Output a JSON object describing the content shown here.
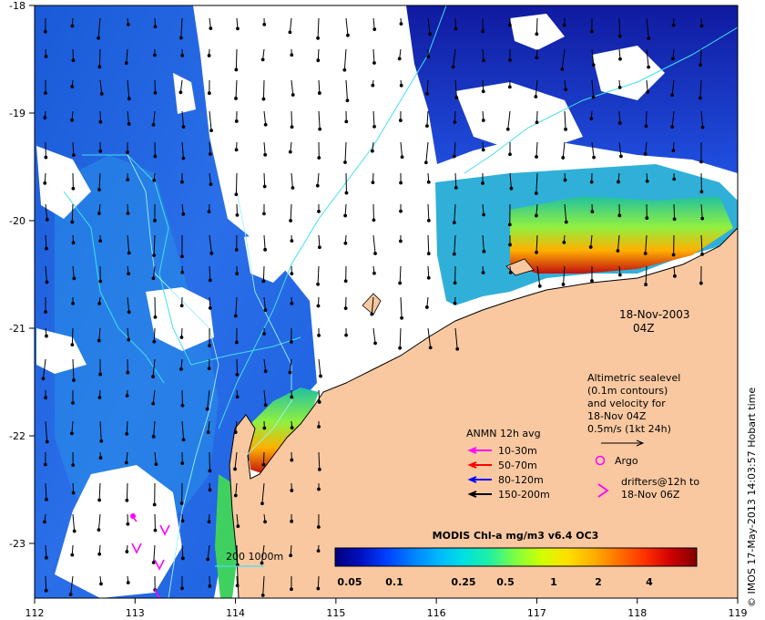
{
  "map": {
    "lon_ticks": [
      "112",
      "113",
      "114",
      "115",
      "116",
      "117",
      "118",
      "119"
    ],
    "lat_ticks": [
      "-18",
      "-19",
      "-20",
      "-21",
      "-22",
      "-23"
    ],
    "date_line1": "18-Nov-2003",
    "date_line2": "04Z",
    "credit": "© IMOS 17-May-2013 14:03:57 Hobart time",
    "altimetry_legend": [
      "Altimetric sealevel",
      "(0.1m contours)",
      "and velocity for",
      "18-Nov 04Z",
      "0.5m/s (1kt 24h)"
    ],
    "anmn": {
      "title": "ANMN 12h avg",
      "entries": [
        {
          "label": "10-30m",
          "color": "#ff00ff"
        },
        {
          "label": "50-70m",
          "color": "#ff0000"
        },
        {
          "label": "80-120m",
          "color": "#0000ff"
        },
        {
          "label": "150-200m",
          "color": "#000000"
        }
      ]
    },
    "argo_label": "Argo",
    "drifters_line1": "drifters@12h to",
    "drifters_line2": "18-Nov 06Z",
    "depth_label": "200  1000m",
    "colorbar": {
      "title": "MODIS Chl-a mg/m3 v6.4 OC3",
      "ticks": [
        "0.05",
        "0.1",
        "0.25",
        "0.5",
        "1",
        "2",
        "4"
      ],
      "colors": [
        "#00007f",
        "#0010c0",
        "#0040ff",
        "#0080ff",
        "#00b8ff",
        "#00e0e0",
        "#20f0a0",
        "#80ff40",
        "#d0ff00",
        "#ffe000",
        "#ffb000",
        "#ff7000",
        "#ff3000",
        "#d00000",
        "#800000"
      ]
    }
  }
}
